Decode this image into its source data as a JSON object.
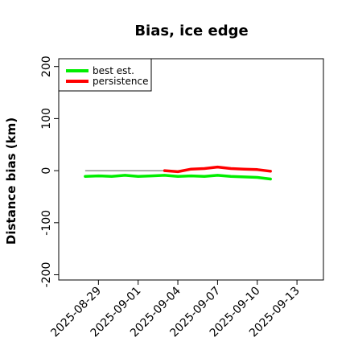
{
  "chart_data": {
    "type": "line",
    "title": "Bias, ice edge",
    "xlabel": "",
    "ylabel": "Distance bias (km)",
    "ylim": [
      -210,
      215
    ],
    "xlim": [
      "2025-08-26",
      "2025-09-15"
    ],
    "yticks": [
      -200,
      -100,
      0,
      100,
      200
    ],
    "xticks": [
      "2025-08-29",
      "2025-09-01",
      "2025-09-04",
      "2025-09-07",
      "2025-09-10",
      "2025-09-13"
    ],
    "reference_line": {
      "y": 0,
      "from": "2025-08-28",
      "to": "2025-09-03",
      "color": "#555555"
    },
    "legend_position": "top-left",
    "series": [
      {
        "name": "best est.",
        "color": "#00ee00",
        "x": [
          "2025-08-28",
          "2025-08-29",
          "2025-08-30",
          "2025-08-31",
          "2025-09-01",
          "2025-09-02",
          "2025-09-03",
          "2025-09-04",
          "2025-09-05",
          "2025-09-06",
          "2025-09-07",
          "2025-09-08",
          "2025-09-09",
          "2025-09-10",
          "2025-09-11"
        ],
        "values": [
          -11,
          -10,
          -11,
          -9,
          -11,
          -10,
          -9,
          -11,
          -10,
          -11,
          -9,
          -11,
          -12,
          -13,
          -16
        ]
      },
      {
        "name": "persistence",
        "color": "#ff0000",
        "x": [
          "2025-09-03",
          "2025-09-04",
          "2025-09-05",
          "2025-09-06",
          "2025-09-07",
          "2025-09-08",
          "2025-09-09",
          "2025-09-10",
          "2025-09-11"
        ],
        "values": [
          0,
          -2,
          3,
          4,
          7,
          4,
          3,
          2,
          -1
        ]
      }
    ]
  }
}
